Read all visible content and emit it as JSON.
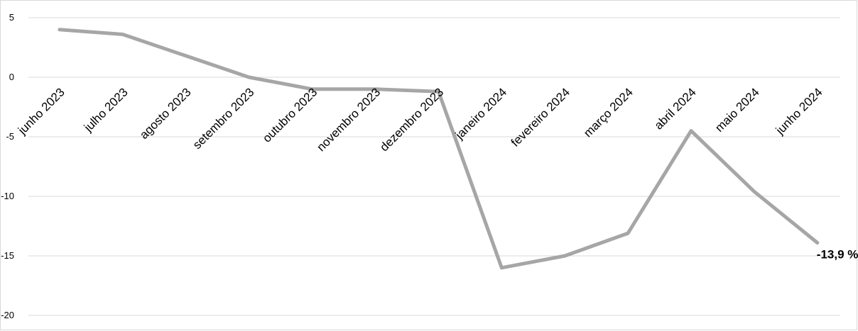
{
  "chart_data": {
    "type": "line",
    "title": "",
    "xlabel": "",
    "ylabel": "",
    "categories": [
      "junho 2023",
      "julho 2023",
      "agosto 2023",
      "setembro 2023",
      "outubro 2023",
      "novembro 2023",
      "dezembro 2023",
      "janeiro 2024",
      "fevereiro 2024",
      "março 2024",
      "abril 2024",
      "maio 2024",
      "junho 2024"
    ],
    "series": [
      {
        "values": [
          4.0,
          3.6,
          1.8,
          0.0,
          -1.0,
          -1.0,
          -1.2,
          -16.0,
          -15.0,
          -13.1,
          -4.5,
          -9.6,
          -13.9
        ],
        "color": "#a6a6a6"
      }
    ],
    "ylim": [
      -20,
      5
    ],
    "yticks": [
      5,
      0,
      -5,
      -10,
      -15,
      -20
    ],
    "grid": true,
    "legend": "none",
    "annotations": [
      {
        "category_index": 12,
        "text": "-13,9 %"
      }
    ]
  }
}
